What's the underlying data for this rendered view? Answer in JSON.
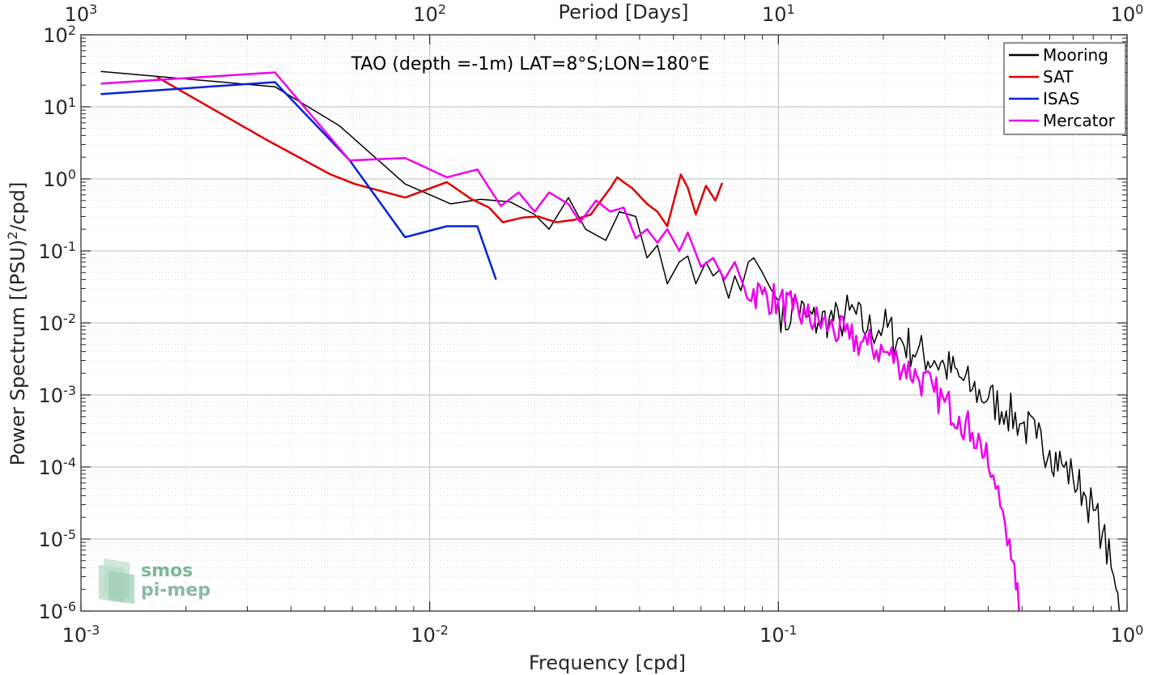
{
  "logo": {
    "line1": "smos",
    "line2": "pi-mep"
  },
  "chart_data": {
    "type": "line",
    "title": "TAO (depth =-1m) LAT=8°S;LON=180°E",
    "xlabel": "Frequency [cpd]",
    "ylabel_main": "Power Spectrum [(PSU)",
    "ylabel_sup": "2",
    "ylabel_tail": "/cpd]",
    "top_axis_label": "Period [Days]",
    "x_scale": "log",
    "y_scale": "log",
    "xlim": [
      0.001,
      1
    ],
    "ylim": [
      1e-06,
      100
    ],
    "grid": true,
    "legend_position": "top-right",
    "bottom_ticks": [
      {
        "v": 0.001,
        "base": "10",
        "exp": "-3"
      },
      {
        "v": 0.01,
        "base": "10",
        "exp": "-2"
      },
      {
        "v": 0.1,
        "base": "10",
        "exp": "-1"
      },
      {
        "v": 1,
        "base": "10",
        "exp": "0"
      }
    ],
    "top_ticks": [
      {
        "v": 0.001,
        "base": "10",
        "exp": "3"
      },
      {
        "v": 0.01,
        "base": "10",
        "exp": "2"
      },
      {
        "v": 0.1,
        "base": "10",
        "exp": "1"
      },
      {
        "v": 1,
        "base": "10",
        "exp": "0"
      }
    ],
    "y_ticks": [
      {
        "v": 1e-06,
        "base": "10",
        "exp": "-6"
      },
      {
        "v": 1e-05,
        "base": "10",
        "exp": "-5"
      },
      {
        "v": 0.0001,
        "base": "10",
        "exp": "-4"
      },
      {
        "v": 0.001,
        "base": "10",
        "exp": "-3"
      },
      {
        "v": 0.01,
        "base": "10",
        "exp": "-2"
      },
      {
        "v": 0.1,
        "base": "10",
        "exp": "-1"
      },
      {
        "v": 1,
        "base": "10",
        "exp": "0"
      },
      {
        "v": 10,
        "base": "10",
        "exp": "1"
      },
      {
        "v": 100,
        "base": "10",
        "exp": "2"
      }
    ],
    "series": [
      {
        "name": "Mooring",
        "color": "#000000",
        "width": 1.5,
        "points": [
          [
            0.00114,
            31
          ],
          [
            0.0036,
            19
          ],
          [
            0.0055,
            5.5
          ],
          [
            0.0085,
            0.85
          ],
          [
            0.0115,
            0.45
          ],
          [
            0.014,
            0.52
          ],
          [
            0.017,
            0.48
          ],
          [
            0.02,
            0.32
          ],
          [
            0.022,
            0.2
          ],
          [
            0.025,
            0.55
          ],
          [
            0.028,
            0.2
          ],
          [
            0.032,
            0.14
          ],
          [
            0.035,
            0.35
          ],
          [
            0.039,
            0.3
          ],
          [
            0.042,
            0.08
          ],
          [
            0.045,
            0.12
          ],
          [
            0.048,
            0.035
          ],
          [
            0.052,
            0.07
          ],
          [
            0.055,
            0.085
          ],
          [
            0.058,
            0.035
          ],
          [
            0.062,
            0.07
          ],
          [
            0.065,
            0.045
          ],
          [
            0.068,
            0.055
          ],
          [
            0.072,
            0.022
          ],
          [
            0.075,
            0.045
          ],
          [
            0.078,
            0.028
          ],
          [
            0.082,
            0.07
          ],
          [
            0.085,
            0.08
          ],
          [
            0.09,
            0.05
          ],
          [
            0.095,
            0.03
          ],
          [
            0.1,
            0.02
          ],
          [
            0.105,
            0.008
          ],
          [
            0.11,
            0.02
          ],
          [
            0.12,
            0.012
          ],
          [
            0.13,
            0.01
          ],
          [
            0.14,
            0.012
          ],
          [
            0.15,
            0.01
          ],
          [
            0.16,
            0.015
          ],
          [
            0.18,
            0.008
          ],
          [
            0.2,
            0.009
          ],
          [
            0.22,
            0.006
          ],
          [
            0.25,
            0.004
          ],
          [
            0.28,
            0.003
          ],
          [
            0.3,
            0.0025
          ],
          [
            0.33,
            0.0018
          ],
          [
            0.36,
            0.0012
          ],
          [
            0.4,
            0.0009
          ],
          [
            0.45,
            0.0006
          ],
          [
            0.5,
            0.0004
          ],
          [
            0.55,
            0.00025
          ],
          [
            0.6,
            0.00017
          ],
          [
            0.65,
            0.00011
          ],
          [
            0.7,
            7e-05
          ],
          [
            0.75,
            4.5e-05
          ],
          [
            0.8,
            2.5e-05
          ],
          [
            0.85,
            1.2e-05
          ],
          [
            0.9,
            4e-06
          ],
          [
            0.93,
            2e-06
          ],
          [
            0.95,
            1e-06
          ]
        ],
        "noise": [
          0.1,
          0.3
        ]
      },
      {
        "name": "SAT",
        "color": "#dd0000",
        "width": 2.5,
        "points": [
          [
            0.00165,
            26
          ],
          [
            0.0034,
            3.5
          ],
          [
            0.0052,
            1.15
          ],
          [
            0.0061,
            0.85
          ],
          [
            0.0085,
            0.55
          ],
          [
            0.0112,
            0.9
          ],
          [
            0.0132,
            0.52
          ],
          [
            0.0148,
            0.4
          ],
          [
            0.0162,
            0.25
          ],
          [
            0.0185,
            0.29
          ],
          [
            0.0205,
            0.3
          ],
          [
            0.023,
            0.25
          ],
          [
            0.026,
            0.27
          ],
          [
            0.029,
            0.32
          ],
          [
            0.0305,
            0.45
          ],
          [
            0.033,
            0.75
          ],
          [
            0.0345,
            1.05
          ],
          [
            0.036,
            0.9
          ],
          [
            0.038,
            0.75
          ],
          [
            0.042,
            0.45
          ],
          [
            0.045,
            0.35
          ],
          [
            0.048,
            0.22
          ],
          [
            0.0525,
            1.15
          ],
          [
            0.055,
            0.75
          ],
          [
            0.058,
            0.32
          ],
          [
            0.062,
            0.8
          ],
          [
            0.066,
            0.5
          ],
          [
            0.069,
            0.88
          ]
        ],
        "noise": [
          0,
          0
        ]
      },
      {
        "name": "ISAS",
        "color": "#0022dd",
        "width": 2.5,
        "points": [
          [
            0.00114,
            15
          ],
          [
            0.0036,
            22
          ],
          [
            0.0059,
            1.8
          ],
          [
            0.0085,
            0.155
          ],
          [
            0.0112,
            0.22
          ],
          [
            0.0137,
            0.22
          ],
          [
            0.0155,
            0.04
          ]
        ],
        "noise": [
          0,
          0
        ]
      },
      {
        "name": "Mercator",
        "color": "#ee00ee",
        "width": 2.5,
        "points": [
          [
            0.00114,
            21
          ],
          [
            0.0036,
            30
          ],
          [
            0.0059,
            1.8
          ],
          [
            0.0085,
            1.95
          ],
          [
            0.0112,
            1.05
          ],
          [
            0.0137,
            1.35
          ],
          [
            0.016,
            0.42
          ],
          [
            0.018,
            0.65
          ],
          [
            0.02,
            0.35
          ],
          [
            0.022,
            0.65
          ],
          [
            0.025,
            0.45
          ],
          [
            0.027,
            0.25
          ],
          [
            0.03,
            0.5
          ],
          [
            0.033,
            0.35
          ],
          [
            0.036,
            0.4
          ],
          [
            0.039,
            0.15
          ],
          [
            0.042,
            0.2
          ],
          [
            0.045,
            0.13
          ],
          [
            0.048,
            0.2
          ],
          [
            0.052,
            0.1
          ],
          [
            0.055,
            0.18
          ],
          [
            0.06,
            0.06
          ],
          [
            0.065,
            0.08
          ],
          [
            0.07,
            0.04
          ],
          [
            0.075,
            0.07
          ],
          [
            0.08,
            0.03
          ],
          [
            0.09,
            0.025
          ],
          [
            0.1,
            0.02
          ],
          [
            0.11,
            0.015
          ],
          [
            0.12,
            0.012
          ],
          [
            0.14,
            0.009
          ],
          [
            0.16,
            0.006
          ],
          [
            0.18,
            0.005
          ],
          [
            0.2,
            0.004
          ],
          [
            0.22,
            0.003
          ],
          [
            0.25,
            0.0018
          ],
          [
            0.28,
            0.0011
          ],
          [
            0.3,
            0.0008
          ],
          [
            0.33,
            0.0005
          ],
          [
            0.36,
            0.0003
          ],
          [
            0.38,
            0.00022
          ],
          [
            0.4,
            0.0001
          ],
          [
            0.42,
            5e-05
          ],
          [
            0.44,
            2.5e-05
          ],
          [
            0.46,
            1e-05
          ],
          [
            0.47,
            5e-06
          ],
          [
            0.48,
            2e-06
          ],
          [
            0.49,
            1e-06
          ]
        ],
        "noise": [
          0.08,
          0.25
        ]
      }
    ]
  }
}
